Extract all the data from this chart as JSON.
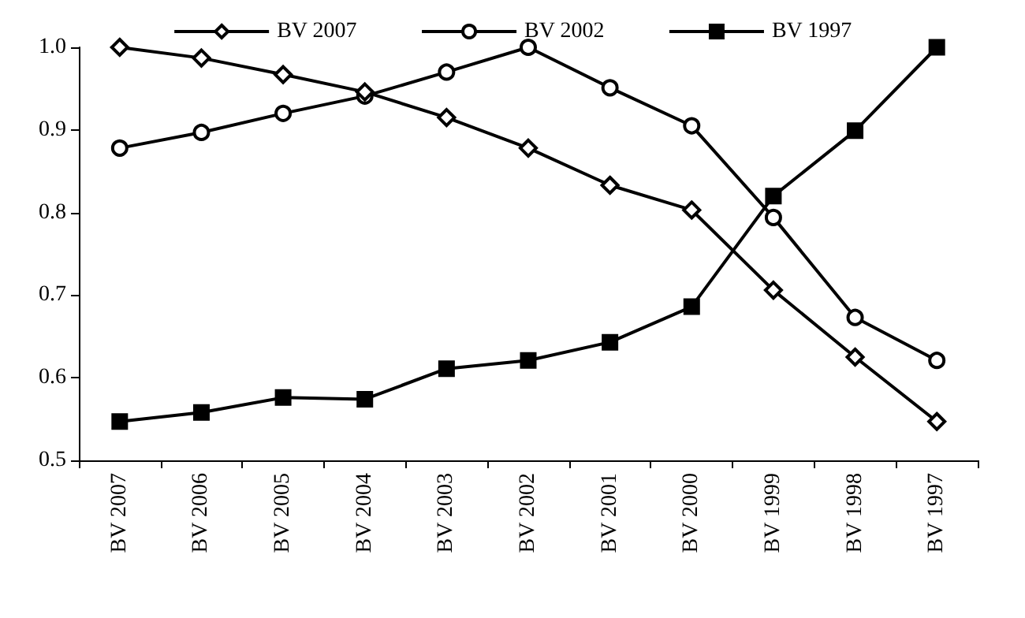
{
  "chart_data": {
    "type": "line",
    "categories": [
      "BV 2007",
      "BV 2006",
      "BV 2005",
      "BV 2004",
      "BV 2003",
      "BV 2002",
      "BV 2001",
      "BV 2000",
      "BV 1999",
      "BV 1998",
      "BV 1997"
    ],
    "series": [
      {
        "name": "BV 2007",
        "color": "#000000",
        "marker": "diamond",
        "values": [
          1.0,
          0.987,
          0.967,
          0.946,
          0.915,
          0.878,
          0.833,
          0.803,
          0.706,
          0.625,
          0.547
        ]
      },
      {
        "name": "BV 2002",
        "color": "#000000",
        "marker": "circle",
        "values": [
          0.878,
          0.897,
          0.92,
          0.941,
          0.97,
          1.0,
          0.951,
          0.905,
          0.794,
          0.673,
          0.621
        ]
      },
      {
        "name": "BV 1997",
        "color": "#000000",
        "marker": "square",
        "values": [
          0.547,
          0.558,
          0.576,
          0.574,
          0.611,
          0.621,
          0.643,
          0.686,
          0.82,
          0.899,
          1.0
        ]
      }
    ],
    "ylim": [
      0.5,
      1.0
    ],
    "yticks": [
      0.5,
      0.6,
      0.7,
      0.8,
      0.9,
      {
        "value": 1,
        "label": "1.0"
      }
    ],
    "grid": false,
    "legend": "top",
    "line_style": "solid"
  }
}
